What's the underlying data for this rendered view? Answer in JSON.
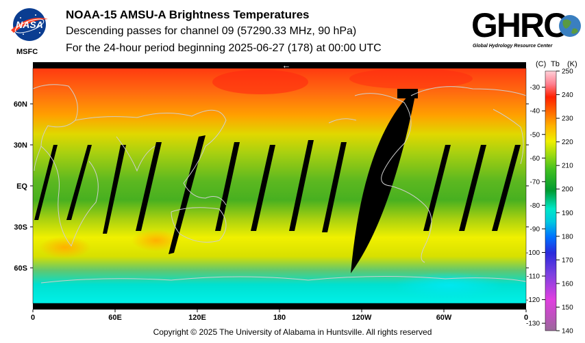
{
  "header": {
    "title": "NOAA-15 AMSU-A Brightness Temperatures",
    "subtitle_1": "Descending passes for channel 09 (57290.33 MHz, 90 hPa)",
    "subtitle_2": "For the 24-hour period beginning 2025-06-27 (178) at 00:00 UTC"
  },
  "logos": {
    "nasa_text": "NASA",
    "msfc_text": "MSFC",
    "ghrc_text": "GHRC",
    "ghrc_tagline": "Global Hydrology Resource Center",
    "nasa_icon": "nasa-meatball-logo",
    "ghrc_icon": "ghrc-globe-logo"
  },
  "map": {
    "latitude_labels": [
      "60N",
      "30N",
      "EQ",
      "30S",
      "60S"
    ],
    "longitude_labels": [
      "0",
      "60E",
      "120E",
      "180",
      "120W",
      "60W",
      "0"
    ],
    "ascending_direction_arrow": "←",
    "missing_swaths_color": "#000000",
    "coastline_color": "#c8c8c8"
  },
  "colorbar": {
    "header_c": "(C)",
    "header_tb": "Tb",
    "header_k": "(K)",
    "celsius_ticks": [
      "-30",
      "-40",
      "-50",
      "-60",
      "-70",
      "-80",
      "-90",
      "-100",
      "-110",
      "-120",
      "-130"
    ],
    "kelvin_ticks": [
      "250",
      "240",
      "230",
      "220",
      "210",
      "200",
      "190",
      "180",
      "170",
      "160",
      "150",
      "140"
    ],
    "kelvin_min": 140,
    "kelvin_max": 250,
    "colors": [
      "#9a6a9a",
      "#c050c0",
      "#e040e0",
      "#7a40e0",
      "#2a2adc",
      "#0070ff",
      "#00c8e0",
      "#00e8c8",
      "#009a30",
      "#40c020",
      "#a0dc10",
      "#f0f000",
      "#ffb000",
      "#ff6000",
      "#ff2000",
      "#ff8090",
      "#ffd0d8"
    ]
  },
  "footer": {
    "copyright": "Copyright © 2025 The University of Alabama in Huntsville.  All rights reserved"
  }
}
